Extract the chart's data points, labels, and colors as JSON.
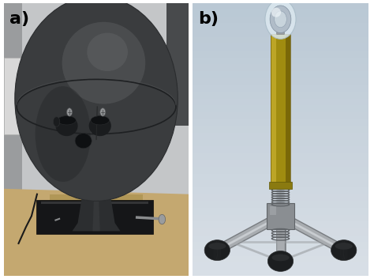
{
  "label_a": "a)",
  "label_b": "b)",
  "label_fontsize": 16,
  "label_color": "#000000",
  "fig_bg_color": "#ffffff",
  "figsize": [
    4.74,
    3.53
  ],
  "dpi": 100,
  "panel_a": {
    "bg_wall": "#c8cacc",
    "bg_left_dark": "#9a9ea2",
    "desk_color": "#c8b080",
    "sphere_dark": "#3c3e40",
    "sphere_mid": "#505254",
    "sphere_light": "#686a6c",
    "base_color": "#1a1c1e",
    "neck_color": "#2e3032"
  },
  "panel_b": {
    "bg_top": "#d0d8e0",
    "bg_bottom": "#c0cad4",
    "pole_main": "#a08c10",
    "pole_light": "#c8b030",
    "pole_dark": "#806c08",
    "hub_color": "#888c90",
    "leg_color": "#a0a4a8",
    "weight_color": "#1a1c1e",
    "sphere_top": "#d8e4ec"
  }
}
